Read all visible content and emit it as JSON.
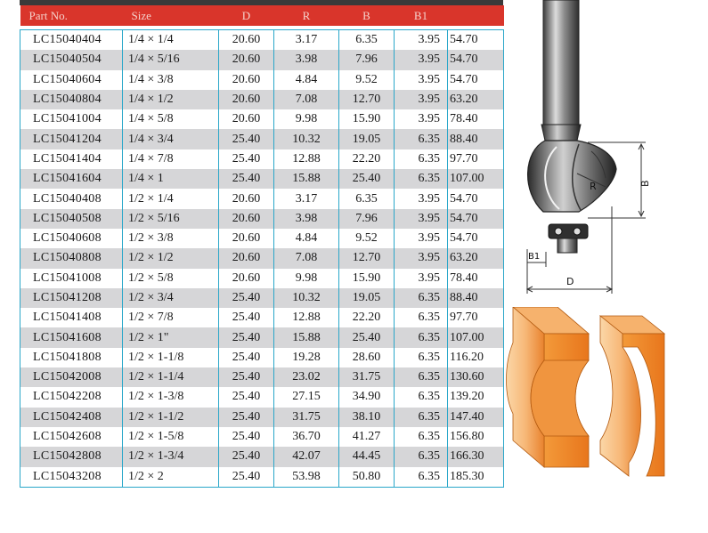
{
  "table": {
    "headers": [
      "Part No.",
      "Size",
      "D",
      "R",
      "B",
      "B1",
      ""
    ],
    "rows": [
      [
        "LC15040404",
        "1/4 × 1/4",
        "20.60",
        "3.17",
        "6.35",
        "3.95",
        "54.70"
      ],
      [
        "LC15040504",
        "1/4 × 5/16",
        "20.60",
        "3.98",
        "7.96",
        "3.95",
        "54.70"
      ],
      [
        "LC15040604",
        "1/4 × 3/8",
        "20.60",
        "4.84",
        "9.52",
        "3.95",
        "54.70"
      ],
      [
        "LC15040804",
        "1/4 × 1/2",
        "20.60",
        "7.08",
        "12.70",
        "3.95",
        "63.20"
      ],
      [
        "LC15041004",
        "1/4 × 5/8",
        "20.60",
        "9.98",
        "15.90",
        "3.95",
        "78.40"
      ],
      [
        "LC15041204",
        "1/4 × 3/4",
        "25.40",
        "10.32",
        "19.05",
        "6.35",
        "88.40"
      ],
      [
        "LC15041404",
        "1/4 × 7/8",
        "25.40",
        "12.88",
        "22.20",
        "6.35",
        "97.70"
      ],
      [
        "LC15041604",
        "1/4 × 1",
        "25.40",
        "15.88",
        "25.40",
        "6.35",
        "107.00"
      ],
      [
        "LC15040408",
        "1/2 × 1/4",
        "20.60",
        "3.17",
        "6.35",
        "3.95",
        "54.70"
      ],
      [
        "LC15040508",
        "1/2 × 5/16",
        "20.60",
        "3.98",
        "7.96",
        "3.95",
        "54.70"
      ],
      [
        "LC15040608",
        "1/2 × 3/8",
        "20.60",
        "4.84",
        "9.52",
        "3.95",
        "54.70"
      ],
      [
        "LC15040808",
        "1/2 × 1/2",
        "20.60",
        "7.08",
        "12.70",
        "3.95",
        "63.20"
      ],
      [
        "LC15041008",
        "1/2 × 5/8",
        "20.60",
        "9.98",
        "15.90",
        "3.95",
        "78.40"
      ],
      [
        "LC15041208",
        "1/2 × 3/4",
        "25.40",
        "10.32",
        "19.05",
        "6.35",
        "88.40"
      ],
      [
        "LC15041408",
        "1/2 × 7/8",
        "25.40",
        "12.88",
        "22.20",
        "6.35",
        "97.70"
      ],
      [
        "LC15041608",
        "1/2 × 1\"",
        "25.40",
        "15.88",
        "25.40",
        "6.35",
        "107.00"
      ],
      [
        "LC15041808",
        "1/2 × 1-1/8",
        "25.40",
        "19.28",
        "28.60",
        "6.35",
        "116.20"
      ],
      [
        "LC15042008",
        "1/2 × 1-1/4",
        "25.40",
        "23.02",
        "31.75",
        "6.35",
        "130.60"
      ],
      [
        "LC15042208",
        "1/2 × 1-3/8",
        "25.40",
        "27.15",
        "34.90",
        "6.35",
        "139.20"
      ],
      [
        "LC15042408",
        "1/2 × 1-1/2",
        "25.40",
        "31.75",
        "38.10",
        "6.35",
        "147.40"
      ],
      [
        "LC15042608",
        "1/2 × 1-5/8",
        "25.40",
        "36.70",
        "41.27",
        "6.35",
        "156.80"
      ],
      [
        "LC15042808",
        "1/2 × 1-3/4",
        "25.40",
        "42.07",
        "44.45",
        "6.35",
        "166.30"
      ],
      [
        "LC15043208",
        "1/2 × 2",
        "25.40",
        "53.98",
        "50.80",
        "6.35",
        "185.30"
      ]
    ]
  },
  "diagram": {
    "label_r": "R",
    "label_b": "B",
    "label_b1": "B1",
    "label_d": "D"
  },
  "colors": {
    "header_bg": "#d9352b",
    "border": "#2aa7c9",
    "stripe": "#d6d6d8",
    "wood": "#f08a2a"
  }
}
